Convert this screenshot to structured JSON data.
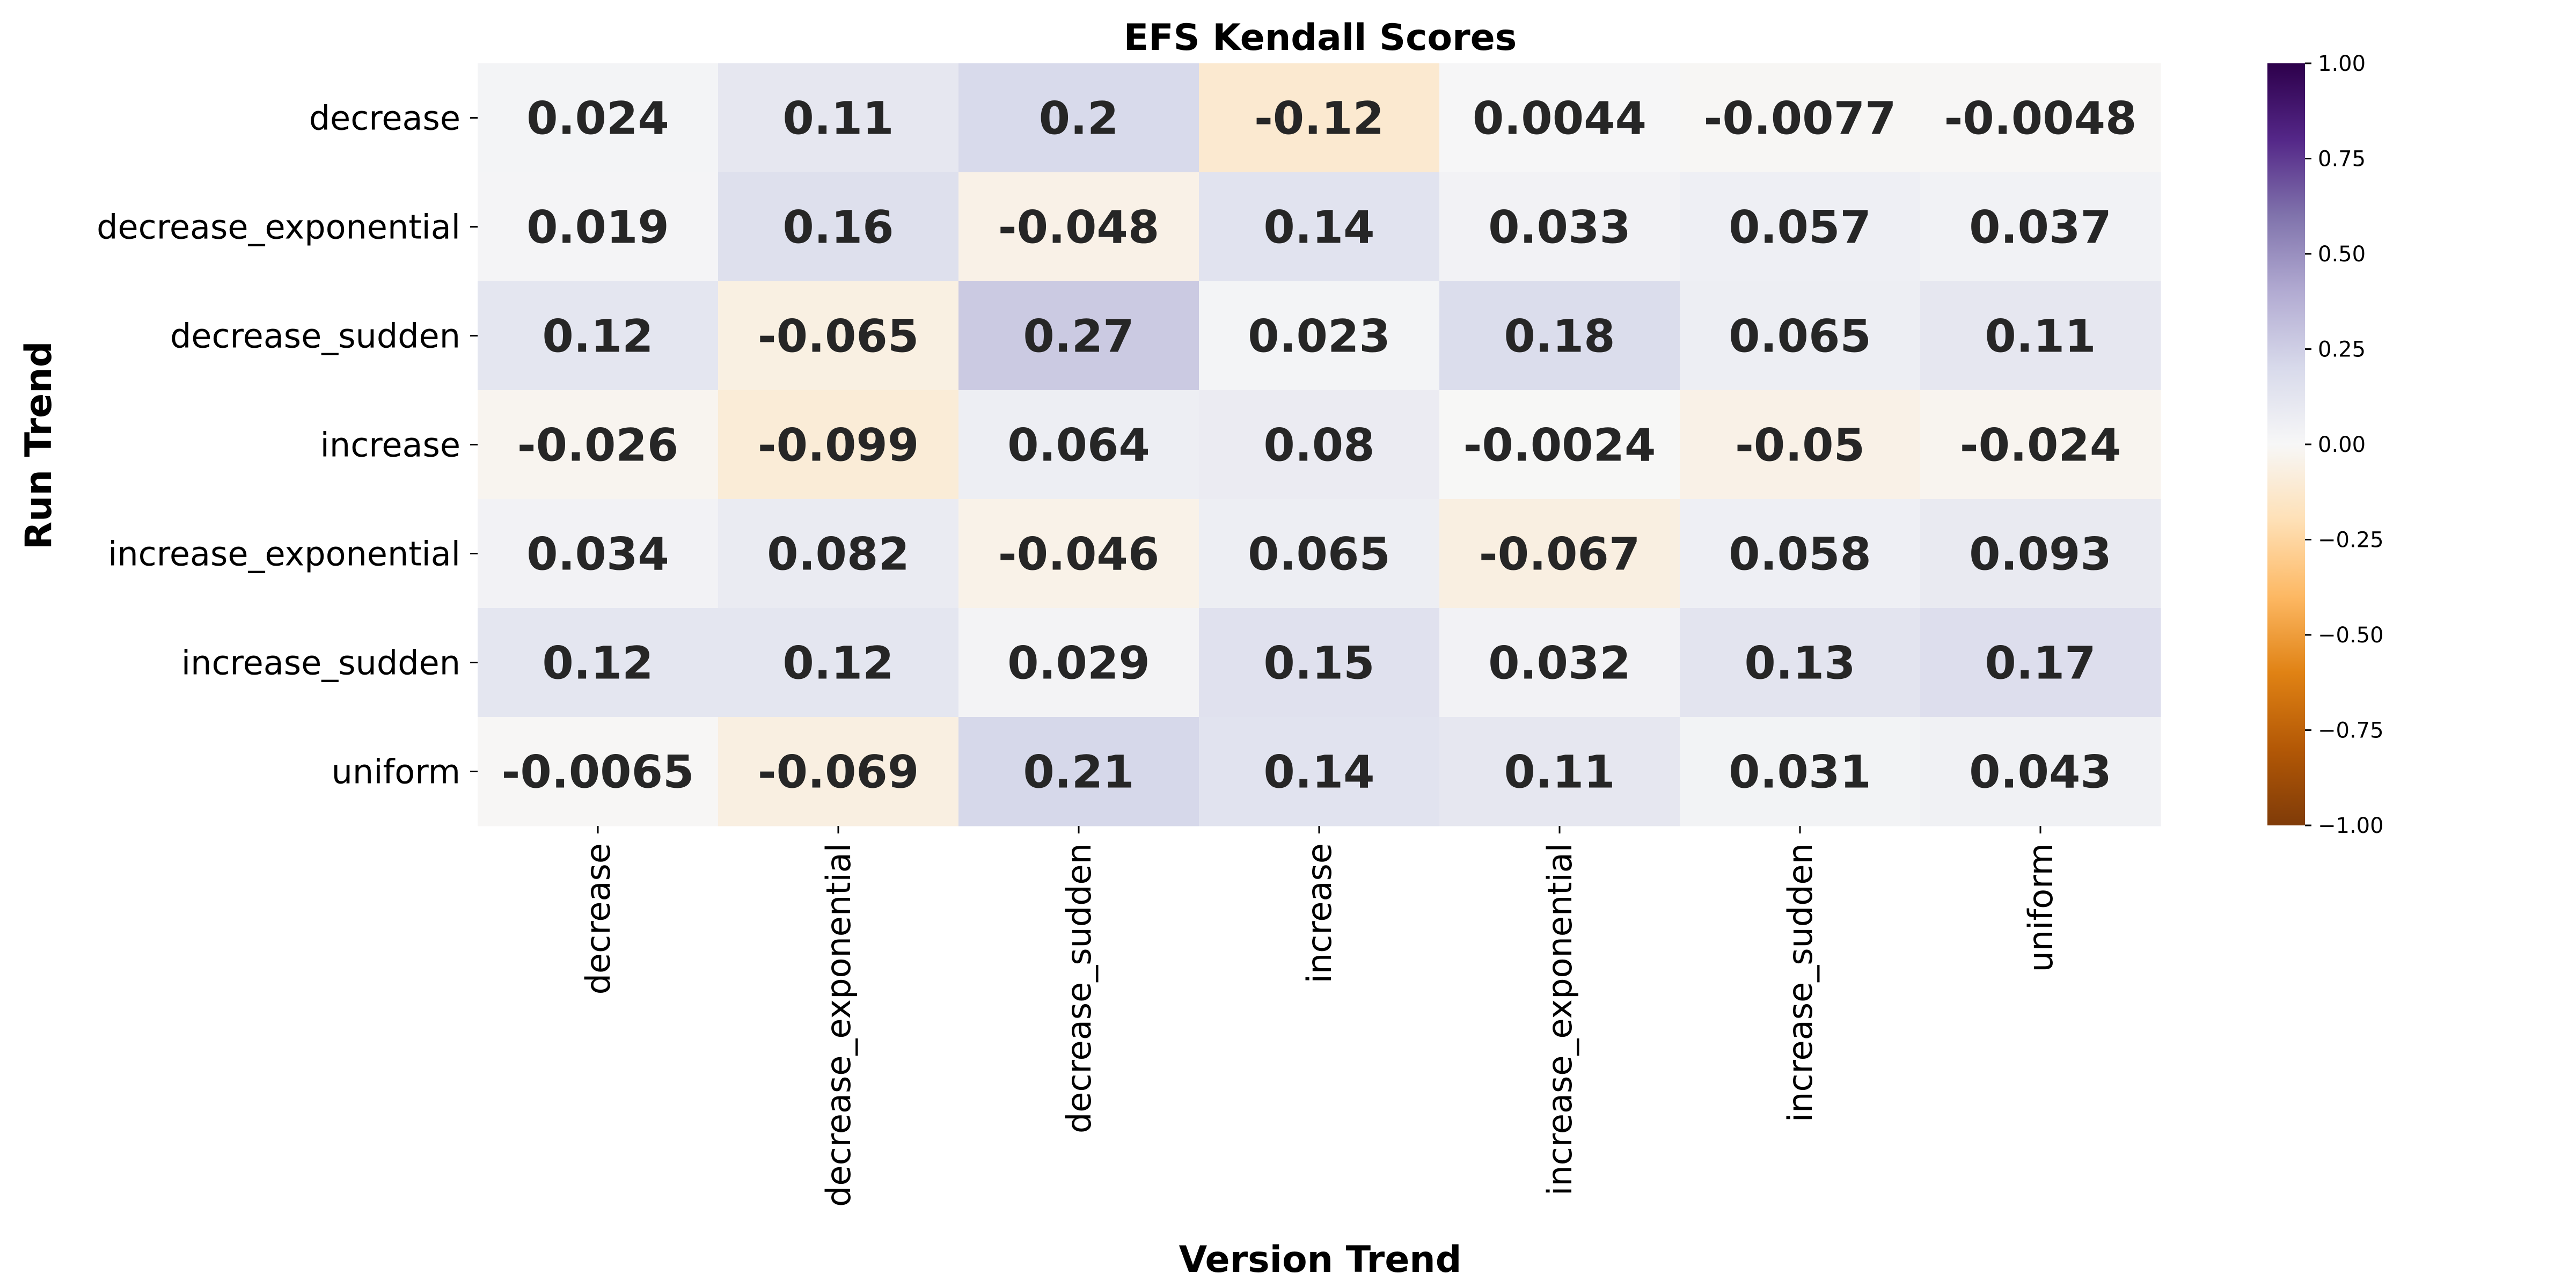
{
  "chart_data": {
    "type": "heatmap",
    "title": "EFS Kendall Scores",
    "xlabel": "Version Trend",
    "ylabel": "Run Trend",
    "x_categories": [
      "decrease",
      "decrease_exponential",
      "decrease_sudden",
      "increase",
      "increase_exponential",
      "increase_sudden",
      "uniform"
    ],
    "y_categories": [
      "decrease",
      "decrease_exponential",
      "decrease_sudden",
      "increase",
      "increase_exponential",
      "increase_sudden",
      "uniform"
    ],
    "values": [
      [
        0.024,
        0.11,
        0.2,
        -0.12,
        0.0044,
        -0.0077,
        -0.0048
      ],
      [
        0.019,
        0.16,
        -0.048,
        0.14,
        0.033,
        0.057,
        0.037
      ],
      [
        0.12,
        -0.065,
        0.27,
        0.023,
        0.18,
        0.065,
        0.11
      ],
      [
        -0.026,
        -0.099,
        0.064,
        0.08,
        -0.0024,
        -0.05,
        -0.024
      ],
      [
        0.034,
        0.082,
        -0.046,
        0.065,
        -0.067,
        0.058,
        0.093
      ],
      [
        0.12,
        0.12,
        0.029,
        0.15,
        0.032,
        0.13,
        0.17
      ],
      [
        -0.0065,
        -0.069,
        0.21,
        0.14,
        0.11,
        0.031,
        0.043
      ]
    ],
    "value_labels": [
      [
        "0.024",
        "0.11",
        "0.2",
        "-0.12",
        "0.0044",
        "-0.0077",
        "-0.0048"
      ],
      [
        "0.019",
        "0.16",
        "-0.048",
        "0.14",
        "0.033",
        "0.057",
        "0.037"
      ],
      [
        "0.12",
        "-0.065",
        "0.27",
        "0.023",
        "0.18",
        "0.065",
        "0.11"
      ],
      [
        "-0.026",
        "-0.099",
        "0.064",
        "0.08",
        "-0.0024",
        "-0.05",
        "-0.024"
      ],
      [
        "0.034",
        "0.082",
        "-0.046",
        "0.065",
        "-0.067",
        "0.058",
        "0.093"
      ],
      [
        "0.12",
        "0.12",
        "0.029",
        "0.15",
        "0.032",
        "0.13",
        "0.17"
      ],
      [
        "-0.0065",
        "-0.069",
        "0.21",
        "0.14",
        "0.11",
        "0.031",
        "0.043"
      ]
    ],
    "colormap": "PuOr",
    "colormap_stops": [
      "#7f3b08",
      "#b35806",
      "#e08214",
      "#fdb863",
      "#fee0b6",
      "#f7f7f7",
      "#d8daeb",
      "#b2abd2",
      "#8073ac",
      "#542788",
      "#2d004b"
    ],
    "vmin": -1.0,
    "vmax": 1.0,
    "colorbar": {
      "position": "right",
      "ticks": [
        1.0,
        0.75,
        0.5,
        0.25,
        0.0,
        -0.25,
        -0.5,
        -0.75,
        -1.0
      ],
      "tick_labels": [
        "1.00",
        "0.75",
        "0.50",
        "0.25",
        "0.00",
        "−0.25",
        "−0.50",
        "−0.75",
        "−1.00"
      ]
    },
    "annotation_text_color": "#262626",
    "grid": false
  }
}
